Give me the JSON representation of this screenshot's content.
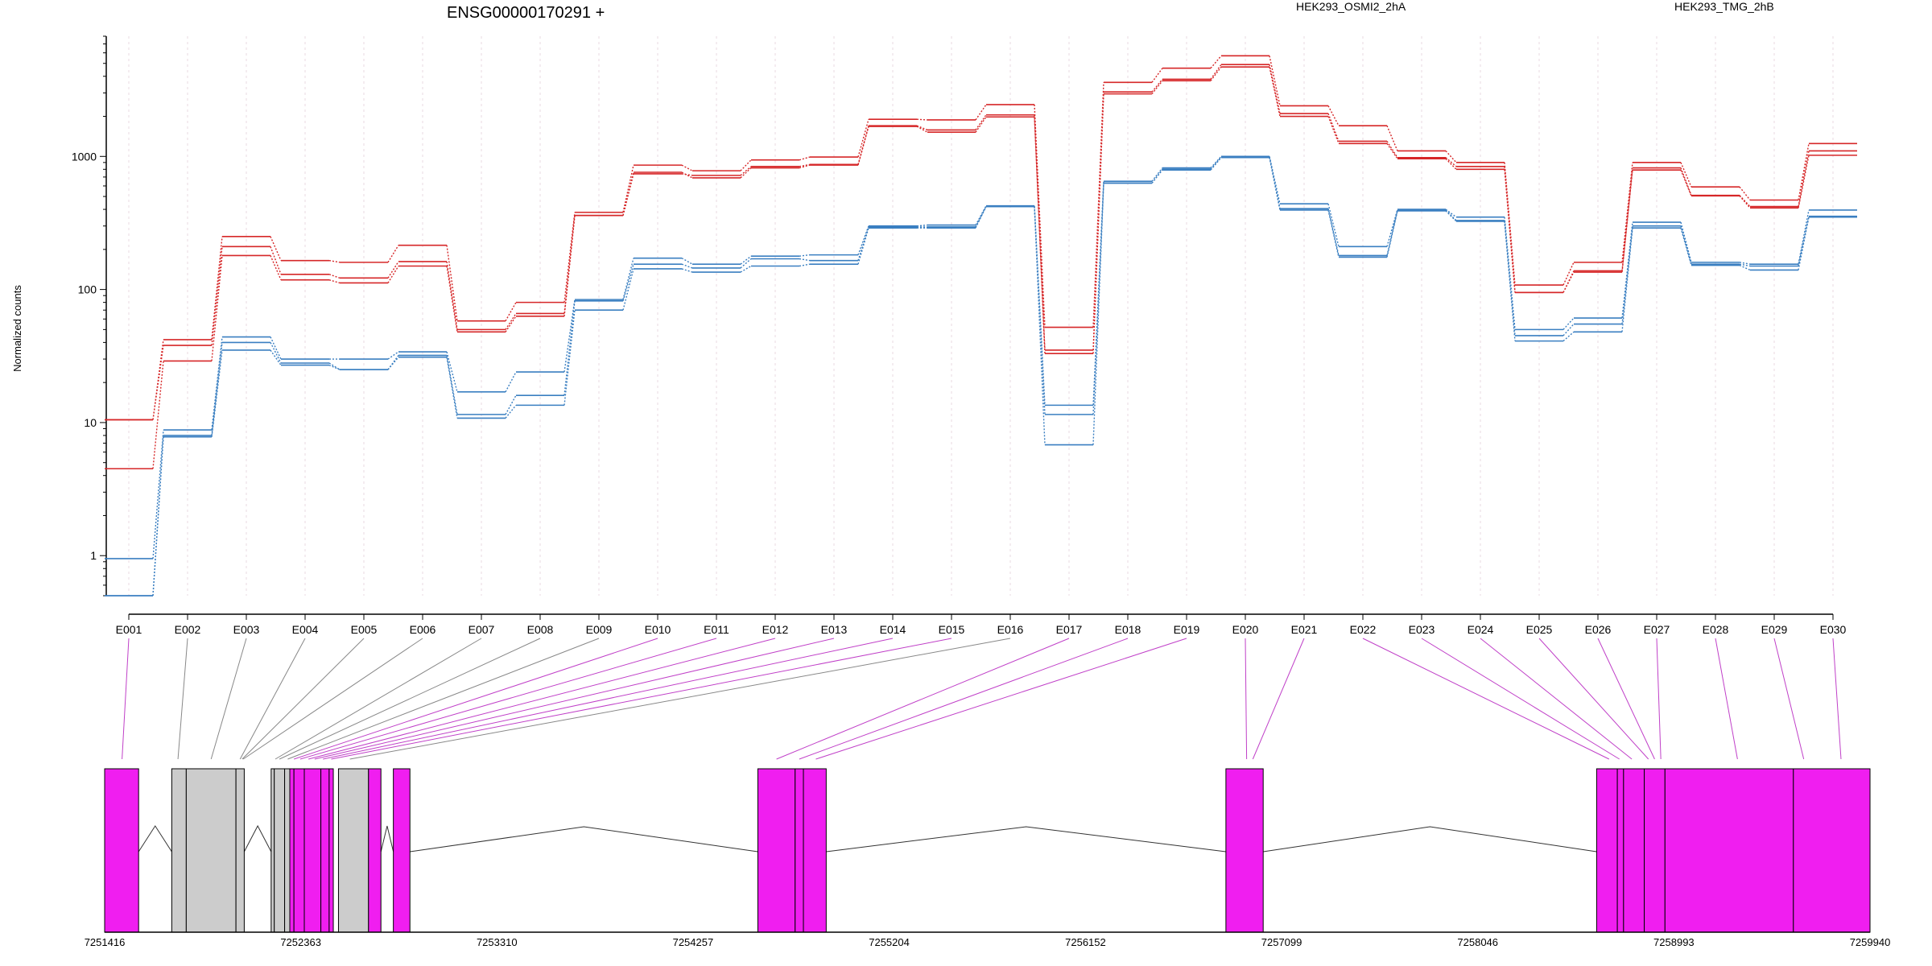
{
  "chart_data": {
    "type": "line",
    "title": "ENSG00000170291 +",
    "ylabel": "Normalized counts",
    "y_scale": "log",
    "ylim": [
      0.5,
      8000
    ],
    "y_ticks": [
      1,
      10,
      100,
      1000
    ],
    "y_tick_labels": [
      "1",
      "10",
      "100",
      "1000"
    ],
    "grid": "vertical dotted lines at each exon",
    "legend_position": "top",
    "categories": [
      "E001",
      "E002",
      "E003",
      "E004",
      "E005",
      "E006",
      "E007",
      "E008",
      "E009",
      "E010",
      "E011",
      "E012",
      "E013",
      "E014",
      "E015",
      "E016",
      "E017",
      "E018",
      "E019",
      "E020",
      "E021",
      "E022",
      "E023",
      "E024",
      "E025",
      "E026",
      "E027",
      "E028",
      "E029",
      "E030"
    ],
    "series": [
      {
        "name": "HEK293_OSMI2_2hA",
        "group": "HEK293_OSMI2_2hA",
        "color": "#d62728",
        "values": [
          10.5,
          42,
          250,
          165,
          160,
          215,
          58,
          80,
          380,
          860,
          780,
          940,
          990,
          1900,
          1880,
          2450,
          52,
          3600,
          4600,
          5700,
          2400,
          1700,
          1100,
          900,
          108,
          160,
          900,
          590,
          470,
          1250
        ]
      },
      {
        "group": "HEK293_OSMI2_2hA",
        "color": "#d62728",
        "values": [
          10.5,
          38,
          210,
          130,
          122,
          162,
          50,
          66,
          360,
          740,
          720,
          840,
          870,
          1700,
          1580,
          2050,
          35,
          3050,
          3800,
          4900,
          2100,
          1300,
          980,
          840,
          95,
          138,
          820,
          510,
          420,
          1100
        ]
      },
      {
        "group": "HEK293_OSMI2_2hA",
        "color": "#d62728",
        "values": [
          4.5,
          29,
          180,
          118,
          112,
          150,
          48,
          63,
          360,
          760,
          690,
          820,
          860,
          1680,
          1520,
          1980,
          33,
          2950,
          3700,
          4700,
          2000,
          1250,
          960,
          800,
          95,
          135,
          790,
          505,
          410,
          1020
        ]
      },
      {
        "name": "HEK293_TMG_2hB",
        "group": "HEK293_TMG_2hB",
        "color": "#3a7fc1",
        "values": [
          0.95,
          8.8,
          44,
          30,
          30,
          34,
          17,
          24,
          84,
          172,
          155,
          178,
          182,
          300,
          305,
          425,
          13.5,
          650,
          820,
          1000,
          440,
          210,
          400,
          350,
          50,
          61,
          320,
          160,
          155,
          395
        ]
      },
      {
        "group": "HEK293_TMG_2hB",
        "color": "#3a7fc1",
        "values": [
          0.5,
          8.0,
          40,
          28,
          25,
          32,
          11.5,
          16,
          82,
          155,
          145,
          170,
          165,
          295,
          295,
          420,
          11.5,
          630,
          800,
          990,
          405,
          180,
          395,
          330,
          45,
          55,
          300,
          155,
          150,
          355
        ]
      },
      {
        "group": "HEK293_TMG_2hB",
        "color": "#3a7fc1",
        "values": [
          0.5,
          7.8,
          35,
          27,
          25,
          31,
          10.8,
          13.5,
          70,
          143,
          135,
          150,
          155,
          290,
          290,
          420,
          6.8,
          630,
          790,
          980,
          395,
          175,
          390,
          325,
          41,
          48,
          290,
          152,
          140,
          350
        ]
      }
    ],
    "gene_model": {
      "genomic_ticks": [
        7251416,
        7252363,
        7253310,
        7254257,
        7255204,
        7256152,
        7257099,
        7258046,
        7258993,
        7259940
      ],
      "genomic_range": [
        7251416,
        7259940
      ],
      "tested_color": "#f01ef0",
      "untested_color": "#cccccc",
      "exon_segments": [
        {
          "start": 7251416,
          "end": 7251580,
          "tested": true
        },
        {
          "start": 7251740,
          "end": 7251810,
          "tested": false
        },
        {
          "start": 7251810,
          "end": 7252050,
          "tested": false
        },
        {
          "start": 7252050,
          "end": 7252090,
          "tested": false
        },
        {
          "start": 7252220,
          "end": 7252235,
          "tested": false
        },
        {
          "start": 7252235,
          "end": 7252285,
          "tested": false
        },
        {
          "start": 7252285,
          "end": 7252310,
          "tested": false
        },
        {
          "start": 7252310,
          "end": 7252330,
          "tested": true
        },
        {
          "start": 7252330,
          "end": 7252380,
          "tested": true
        },
        {
          "start": 7252380,
          "end": 7252460,
          "tested": true
        },
        {
          "start": 7252460,
          "end": 7252500,
          "tested": true
        },
        {
          "start": 7252500,
          "end": 7252520,
          "tested": true
        },
        {
          "start": 7252545,
          "end": 7252690,
          "tested": false
        },
        {
          "start": 7252690,
          "end": 7252750,
          "tested": true
        },
        {
          "start": 7252810,
          "end": 7252890,
          "tested": true
        },
        {
          "start": 7254570,
          "end": 7254750,
          "tested": true
        },
        {
          "start": 7254750,
          "end": 7254790,
          "tested": true
        },
        {
          "start": 7254790,
          "end": 7254900,
          "tested": true
        },
        {
          "start": 7256830,
          "end": 7257010,
          "tested": true
        },
        {
          "start": 7258620,
          "end": 7258720,
          "tested": true
        },
        {
          "start": 7258720,
          "end": 7258750,
          "tested": true
        },
        {
          "start": 7258750,
          "end": 7258850,
          "tested": true
        },
        {
          "start": 7258850,
          "end": 7258950,
          "tested": true
        },
        {
          "start": 7258950,
          "end": 7259570,
          "tested": true
        },
        {
          "start": 7259570,
          "end": 7259940,
          "tested": true
        }
      ],
      "introns": [
        [
          7251580,
          7251740
        ],
        [
          7252090,
          7252220
        ],
        [
          7252750,
          7252810
        ],
        [
          7252890,
          7254570
        ],
        [
          7254900,
          7256830
        ],
        [
          7257010,
          7258620
        ]
      ],
      "exon_link_positions": [
        7251500,
        7251770,
        7251930,
        7252070,
        7252080,
        7252085,
        7252240,
        7252260,
        7252300,
        7252330,
        7252360,
        7252400,
        7252430,
        7252470,
        7252510,
        7252600,
        7254660,
        7254770,
        7254850,
        7256930,
        7256960,
        7258680,
        7258730,
        7258790,
        7258870,
        7258900,
        7258930,
        7259300,
        7259620,
        7259800
      ]
    }
  }
}
